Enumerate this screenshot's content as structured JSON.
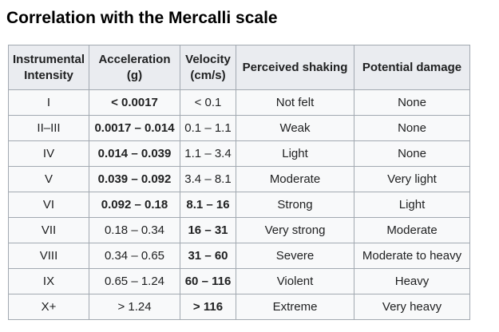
{
  "heading": "Correlation with the Mercalli scale",
  "columns": [
    {
      "line1": "Instrumental",
      "line2": "Intensity"
    },
    {
      "line1": "Acceleration",
      "line2": "(g)"
    },
    {
      "line1": "Velocity",
      "line2": "(cm/s)"
    },
    {
      "line1": "Perceived shaking",
      "line2": ""
    },
    {
      "line1": "Potential damage",
      "line2": ""
    }
  ],
  "rows": [
    {
      "intensity": "I",
      "acceleration": "< 0.0017",
      "velocity": "< 0.1",
      "shaking": "Not felt",
      "damage": "None",
      "bold_col": "acceleration"
    },
    {
      "intensity": "II–III",
      "acceleration": "0.0017 – 0.014",
      "velocity": "0.1 – 1.1",
      "shaking": "Weak",
      "damage": "None",
      "bold_col": "acceleration"
    },
    {
      "intensity": "IV",
      "acceleration": "0.014 – 0.039",
      "velocity": "1.1 – 3.4",
      "shaking": "Light",
      "damage": "None",
      "bold_col": "acceleration"
    },
    {
      "intensity": "V",
      "acceleration": "0.039 – 0.092",
      "velocity": "3.4 – 8.1",
      "shaking": "Moderate",
      "damage": "Very light",
      "bold_col": "acceleration"
    },
    {
      "intensity": "VI",
      "acceleration": "0.092 – 0.18",
      "velocity": "8.1 – 16",
      "shaking": "Strong",
      "damage": "Light",
      "bold_col": "both"
    },
    {
      "intensity": "VII",
      "acceleration": "0.18 – 0.34",
      "velocity": "16 – 31",
      "shaking": "Very strong",
      "damage": "Moderate",
      "bold_col": "velocity"
    },
    {
      "intensity": "VIII",
      "acceleration": "0.34 – 0.65",
      "velocity": "31 – 60",
      "shaking": "Severe",
      "damage": "Moderate to heavy",
      "bold_col": "velocity"
    },
    {
      "intensity": "IX",
      "acceleration": "0.65 – 1.24",
      "velocity": "60 – 116",
      "shaking": "Violent",
      "damage": "Heavy",
      "bold_col": "velocity"
    },
    {
      "intensity": "X+",
      "acceleration": "> 1.24",
      "velocity": "> 116",
      "shaking": "Extreme",
      "damage": "Very heavy",
      "bold_col": "velocity"
    }
  ]
}
